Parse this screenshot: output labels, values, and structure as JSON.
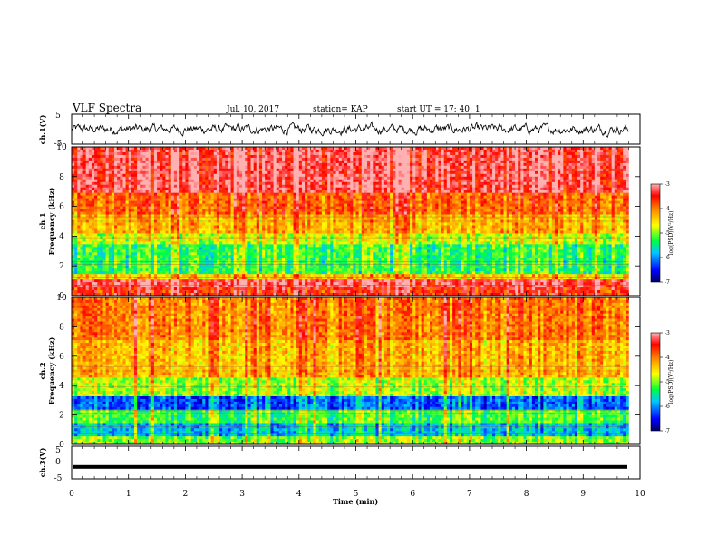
{
  "header": {
    "title": "VLF Spectra",
    "date": "Jul. 10, 2017",
    "station": "station= KAP",
    "start_ut": "start UT = 17: 40: 1"
  },
  "colors": {
    "waveform": "#000000",
    "colormap": [
      "#000066",
      "#0000ff",
      "#00c8ff",
      "#00ff40",
      "#a0ff20",
      "#ffff00",
      "#ff8000",
      "#ff0000",
      "#ff9090"
    ]
  },
  "chart_data": [
    {
      "type": "line",
      "panel": "ch1-waveform",
      "ylabel": "ch.1(V)",
      "ylim": [
        -5,
        5
      ],
      "yticks": [
        "5",
        "-5"
      ],
      "xlim": [
        0,
        10
      ],
      "description_values": {
        "approx_amplitude": [
          -2,
          2
        ]
      }
    },
    {
      "type": "heatmap",
      "panel": "ch1-spectrogram",
      "ylabel": "ch.1 Frequency (kHz)",
      "ylabel_lines": [
        "ch.1",
        "Frequency (kHz)"
      ],
      "ylim": [
        0,
        10
      ],
      "yticks": [
        "10",
        "8",
        "6",
        "4",
        "2",
        "0"
      ],
      "xlim": [
        0,
        9.8
      ],
      "colorbar": {
        "label": "log(PSD)(V²/Hz)",
        "range": [
          -7,
          -3
        ],
        "ticks": [
          "-3",
          "-4",
          "-5",
          "-6",
          "-7"
        ]
      },
      "bands": [
        {
          "f": [
            0,
            0.5
          ],
          "level": -3.6
        },
        {
          "f": [
            0.5,
            1.0
          ],
          "level": -3.3
        },
        {
          "f": [
            1.0,
            1.5
          ],
          "level": -4.4
        },
        {
          "f": [
            1.5,
            3.5
          ],
          "level": -5.3
        },
        {
          "f": [
            3.5,
            4.2
          ],
          "level": -4.8
        },
        {
          "f": [
            4.2,
            5.5
          ],
          "level": -4.3
        },
        {
          "f": [
            5.5,
            7.0
          ],
          "level": -3.9
        },
        {
          "f": [
            7.0,
            10.0
          ],
          "level": -3.3
        }
      ]
    },
    {
      "type": "heatmap",
      "panel": "ch2-spectrogram",
      "ylabel": "ch.2 Frequency (kHz)",
      "ylabel_lines": [
        "ch.2",
        "Frequency (kHz)"
      ],
      "ylim": [
        0,
        10
      ],
      "yticks": [
        "10",
        "8",
        "6",
        "4",
        "2",
        "0"
      ],
      "xlim": [
        0,
        9.8
      ],
      "colorbar": {
        "label": "log(PSD)(V²/Hz)",
        "range": [
          -7,
          -3
        ],
        "ticks": [
          "-3",
          "-4",
          "-5",
          "-6",
          "-7"
        ]
      },
      "bands": [
        {
          "f": [
            0,
            0.5
          ],
          "level": -5.0
        },
        {
          "f": [
            0.5,
            1.5
          ],
          "level": -5.8
        },
        {
          "f": [
            1.5,
            2.3
          ],
          "level": -5.2
        },
        {
          "f": [
            2.3,
            3.3
          ],
          "level": -6.2
        },
        {
          "f": [
            3.3,
            4.5
          ],
          "level": -4.9
        },
        {
          "f": [
            4.5,
            7.0
          ],
          "level": -4.3
        },
        {
          "f": [
            7.0,
            10.0
          ],
          "level": -4.0
        }
      ]
    },
    {
      "type": "line",
      "panel": "ch3-waveform",
      "ylabel": "ch.3(V)",
      "ylim": [
        -5,
        5
      ],
      "yticks": [
        "5",
        "0",
        "-5"
      ],
      "xlim": [
        0,
        10
      ],
      "constant_value": -1.5
    }
  ],
  "xaxis": {
    "label": "Time (min)",
    "range": [
      0,
      10
    ],
    "ticks": [
      "0",
      "1",
      "2",
      "3",
      "4",
      "5",
      "6",
      "7",
      "8",
      "9",
      "10"
    ]
  }
}
